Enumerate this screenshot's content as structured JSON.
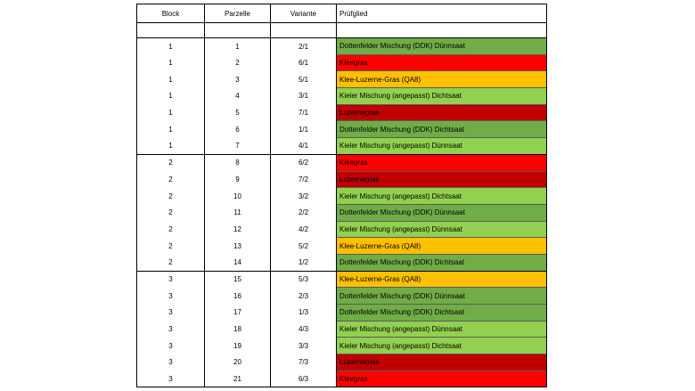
{
  "headers": [
    "Block",
    "Parzelle",
    "Variante",
    "Prüfglied"
  ],
  "colors": {
    "dottenfelder": "#70ad47",
    "kieler": "#92d050",
    "kleegras": "#ff0000",
    "luzernegras": "#c00000",
    "klee_luzerne": "#ffc000"
  },
  "rows": [
    {
      "block": "1",
      "parzelle": "1",
      "variante": "2/1",
      "pruefglied": "Dottenfelder Mischung (DDK) Dünnsaat",
      "color": "#70ad47"
    },
    {
      "block": "1",
      "parzelle": "2",
      "variante": "6/1",
      "pruefglied": "Kleegras",
      "color": "#ff0000"
    },
    {
      "block": "1",
      "parzelle": "3",
      "variante": "5/1",
      "pruefglied": "Klee-Luzerne-Gras (QA8)",
      "color": "#ffc000"
    },
    {
      "block": "1",
      "parzelle": "4",
      "variante": "3/1",
      "pruefglied": "Kieler Mischung (angepasst) Dichtsaat",
      "color": "#92d050"
    },
    {
      "block": "1",
      "parzelle": "5",
      "variante": "7/1",
      "pruefglied": "Luzernegras",
      "color": "#c00000"
    },
    {
      "block": "1",
      "parzelle": "6",
      "variante": "1/1",
      "pruefglied": "Dottenfelder Mischung (DDK) Dichtsaat",
      "color": "#70ad47"
    },
    {
      "block": "1",
      "parzelle": "7",
      "variante": "4/1",
      "pruefglied": "Kieler Mischung (angepasst) Dünnsaat",
      "color": "#92d050"
    },
    {
      "block": "2",
      "parzelle": "8",
      "variante": "6/2",
      "pruefglied": "Kleegras",
      "color": "#ff0000"
    },
    {
      "block": "2",
      "parzelle": "9",
      "variante": "7/2",
      "pruefglied": "Luzernegras",
      "color": "#c00000"
    },
    {
      "block": "2",
      "parzelle": "10",
      "variante": "3/2",
      "pruefglied": "Kieler Mischung (angepasst) Dichtsaat",
      "color": "#92d050"
    },
    {
      "block": "2",
      "parzelle": "11",
      "variante": "2/2",
      "pruefglied": "Dottenfelder Mischung (DDK) Dünnsaat",
      "color": "#70ad47"
    },
    {
      "block": "2",
      "parzelle": "12",
      "variante": "4/2",
      "pruefglied": "Kieler Mischung (angepasst) Dünnsaat",
      "color": "#92d050"
    },
    {
      "block": "2",
      "parzelle": "13",
      "variante": "5/2",
      "pruefglied": "Klee-Luzerne-Gras (QA8)",
      "color": "#ffc000"
    },
    {
      "block": "2",
      "parzelle": "14",
      "variante": "1/2",
      "pruefglied": "Dottenfelder Mischung (DDK) Dichtsaat",
      "color": "#70ad47"
    },
    {
      "block": "3",
      "parzelle": "15",
      "variante": "5/3",
      "pruefglied": "Klee-Luzerne-Gras (QA8)",
      "color": "#ffc000"
    },
    {
      "block": "3",
      "parzelle": "16",
      "variante": "2/3",
      "pruefglied": "Dottenfelder Mischung (DDK) Dünnsaat",
      "color": "#70ad47"
    },
    {
      "block": "3",
      "parzelle": "17",
      "variante": "1/3",
      "pruefglied": "Dottenfelder Mischung (DDK) Dichtsaat",
      "color": "#70ad47"
    },
    {
      "block": "3",
      "parzelle": "18",
      "variante": "4/3",
      "pruefglied": "Kieler Mischung (angepasst) Dünnsaat",
      "color": "#92d050"
    },
    {
      "block": "3",
      "parzelle": "19",
      "variante": "3/3",
      "pruefglied": "Kieler Mischung (angepasst) Dichtsaat",
      "color": "#92d050"
    },
    {
      "block": "3",
      "parzelle": "20",
      "variante": "7/3",
      "pruefglied": "Luzernegras",
      "color": "#c00000"
    },
    {
      "block": "3",
      "parzelle": "21",
      "variante": "6/3",
      "pruefglied": "Kleegras",
      "color": "#ff0000"
    }
  ]
}
